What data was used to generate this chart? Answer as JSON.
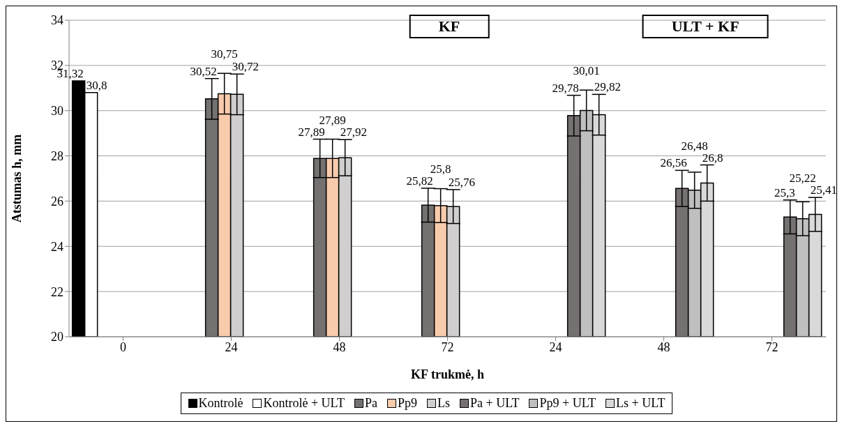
{
  "chart_data": {
    "type": "bar",
    "xlabel": "KF trukmė, h",
    "ylabel": "Atstumas h, mm",
    "categories": [
      "0",
      "24",
      "48",
      "72",
      "24",
      "48",
      "72"
    ],
    "series": [
      {
        "name": "Kontrolė",
        "color": "#000000",
        "values": [
          31.32,
          null,
          null,
          null,
          null,
          null,
          null
        ],
        "value_labels": [
          "31,32",
          null,
          null,
          null,
          null,
          null,
          null
        ]
      },
      {
        "name": "Kontrolė + ULT",
        "color": "#ffffff",
        "values": [
          30.8,
          null,
          null,
          null,
          null,
          null,
          null
        ],
        "value_labels": [
          "30,8",
          null,
          null,
          null,
          null,
          null,
          null
        ]
      },
      {
        "name": "Pa",
        "color": "#767171",
        "values": [
          null,
          30.52,
          27.89,
          25.82,
          null,
          null,
          null
        ],
        "errors": [
          null,
          0.9,
          0.85,
          0.75,
          null,
          null,
          null
        ],
        "value_labels": [
          null,
          "30,52",
          "27,89",
          "25,82",
          null,
          null,
          null
        ]
      },
      {
        "name": "Pp9",
        "color": "#f8cbad",
        "values": [
          null,
          30.75,
          27.89,
          25.8,
          null,
          null,
          null
        ],
        "errors": [
          null,
          0.9,
          0.85,
          0.75,
          null,
          null,
          null
        ],
        "value_labels": [
          null,
          "30,75",
          "27,89",
          "25,8",
          null,
          null,
          null
        ]
      },
      {
        "name": "Ls",
        "color": "#d0cece",
        "values": [
          null,
          30.72,
          27.92,
          25.76,
          null,
          null,
          null
        ],
        "errors": [
          null,
          0.9,
          0.8,
          0.75,
          null,
          null,
          null
        ],
        "value_labels": [
          null,
          "30,72",
          "27,92",
          "25,76",
          null,
          null,
          null
        ]
      },
      {
        "name": "Pa + ULT",
        "color": "#767171",
        "values": [
          null,
          null,
          null,
          null,
          29.78,
          26.56,
          25.3
        ],
        "errors": [
          null,
          null,
          null,
          null,
          0.9,
          0.8,
          0.75
        ],
        "value_labels": [
          null,
          null,
          null,
          null,
          "29,78",
          "26,56",
          "25,3"
        ]
      },
      {
        "name": "Pp9 + ULT",
        "color": "#bfbfbf",
        "values": [
          null,
          null,
          null,
          null,
          30.01,
          26.48,
          25.22
        ],
        "errors": [
          null,
          null,
          null,
          null,
          0.9,
          0.8,
          0.75
        ],
        "value_labels": [
          null,
          null,
          null,
          null,
          "30,01",
          "26,48",
          "25,22"
        ]
      },
      {
        "name": "Ls + ULT",
        "color": "#d9d9d9",
        "values": [
          null,
          null,
          null,
          null,
          29.82,
          26.8,
          25.41
        ],
        "errors": [
          null,
          null,
          null,
          null,
          0.9,
          0.8,
          0.75
        ],
        "value_labels": [
          null,
          null,
          null,
          null,
          "29,82",
          "26,8",
          "25,41"
        ]
      }
    ],
    "ylim": [
      20,
      34
    ],
    "yticks": [
      20,
      22,
      24,
      26,
      28,
      30,
      32,
      34
    ],
    "grid": "y",
    "legend": "bottom",
    "annotations": [
      "KF",
      "ULT + KF"
    ]
  }
}
